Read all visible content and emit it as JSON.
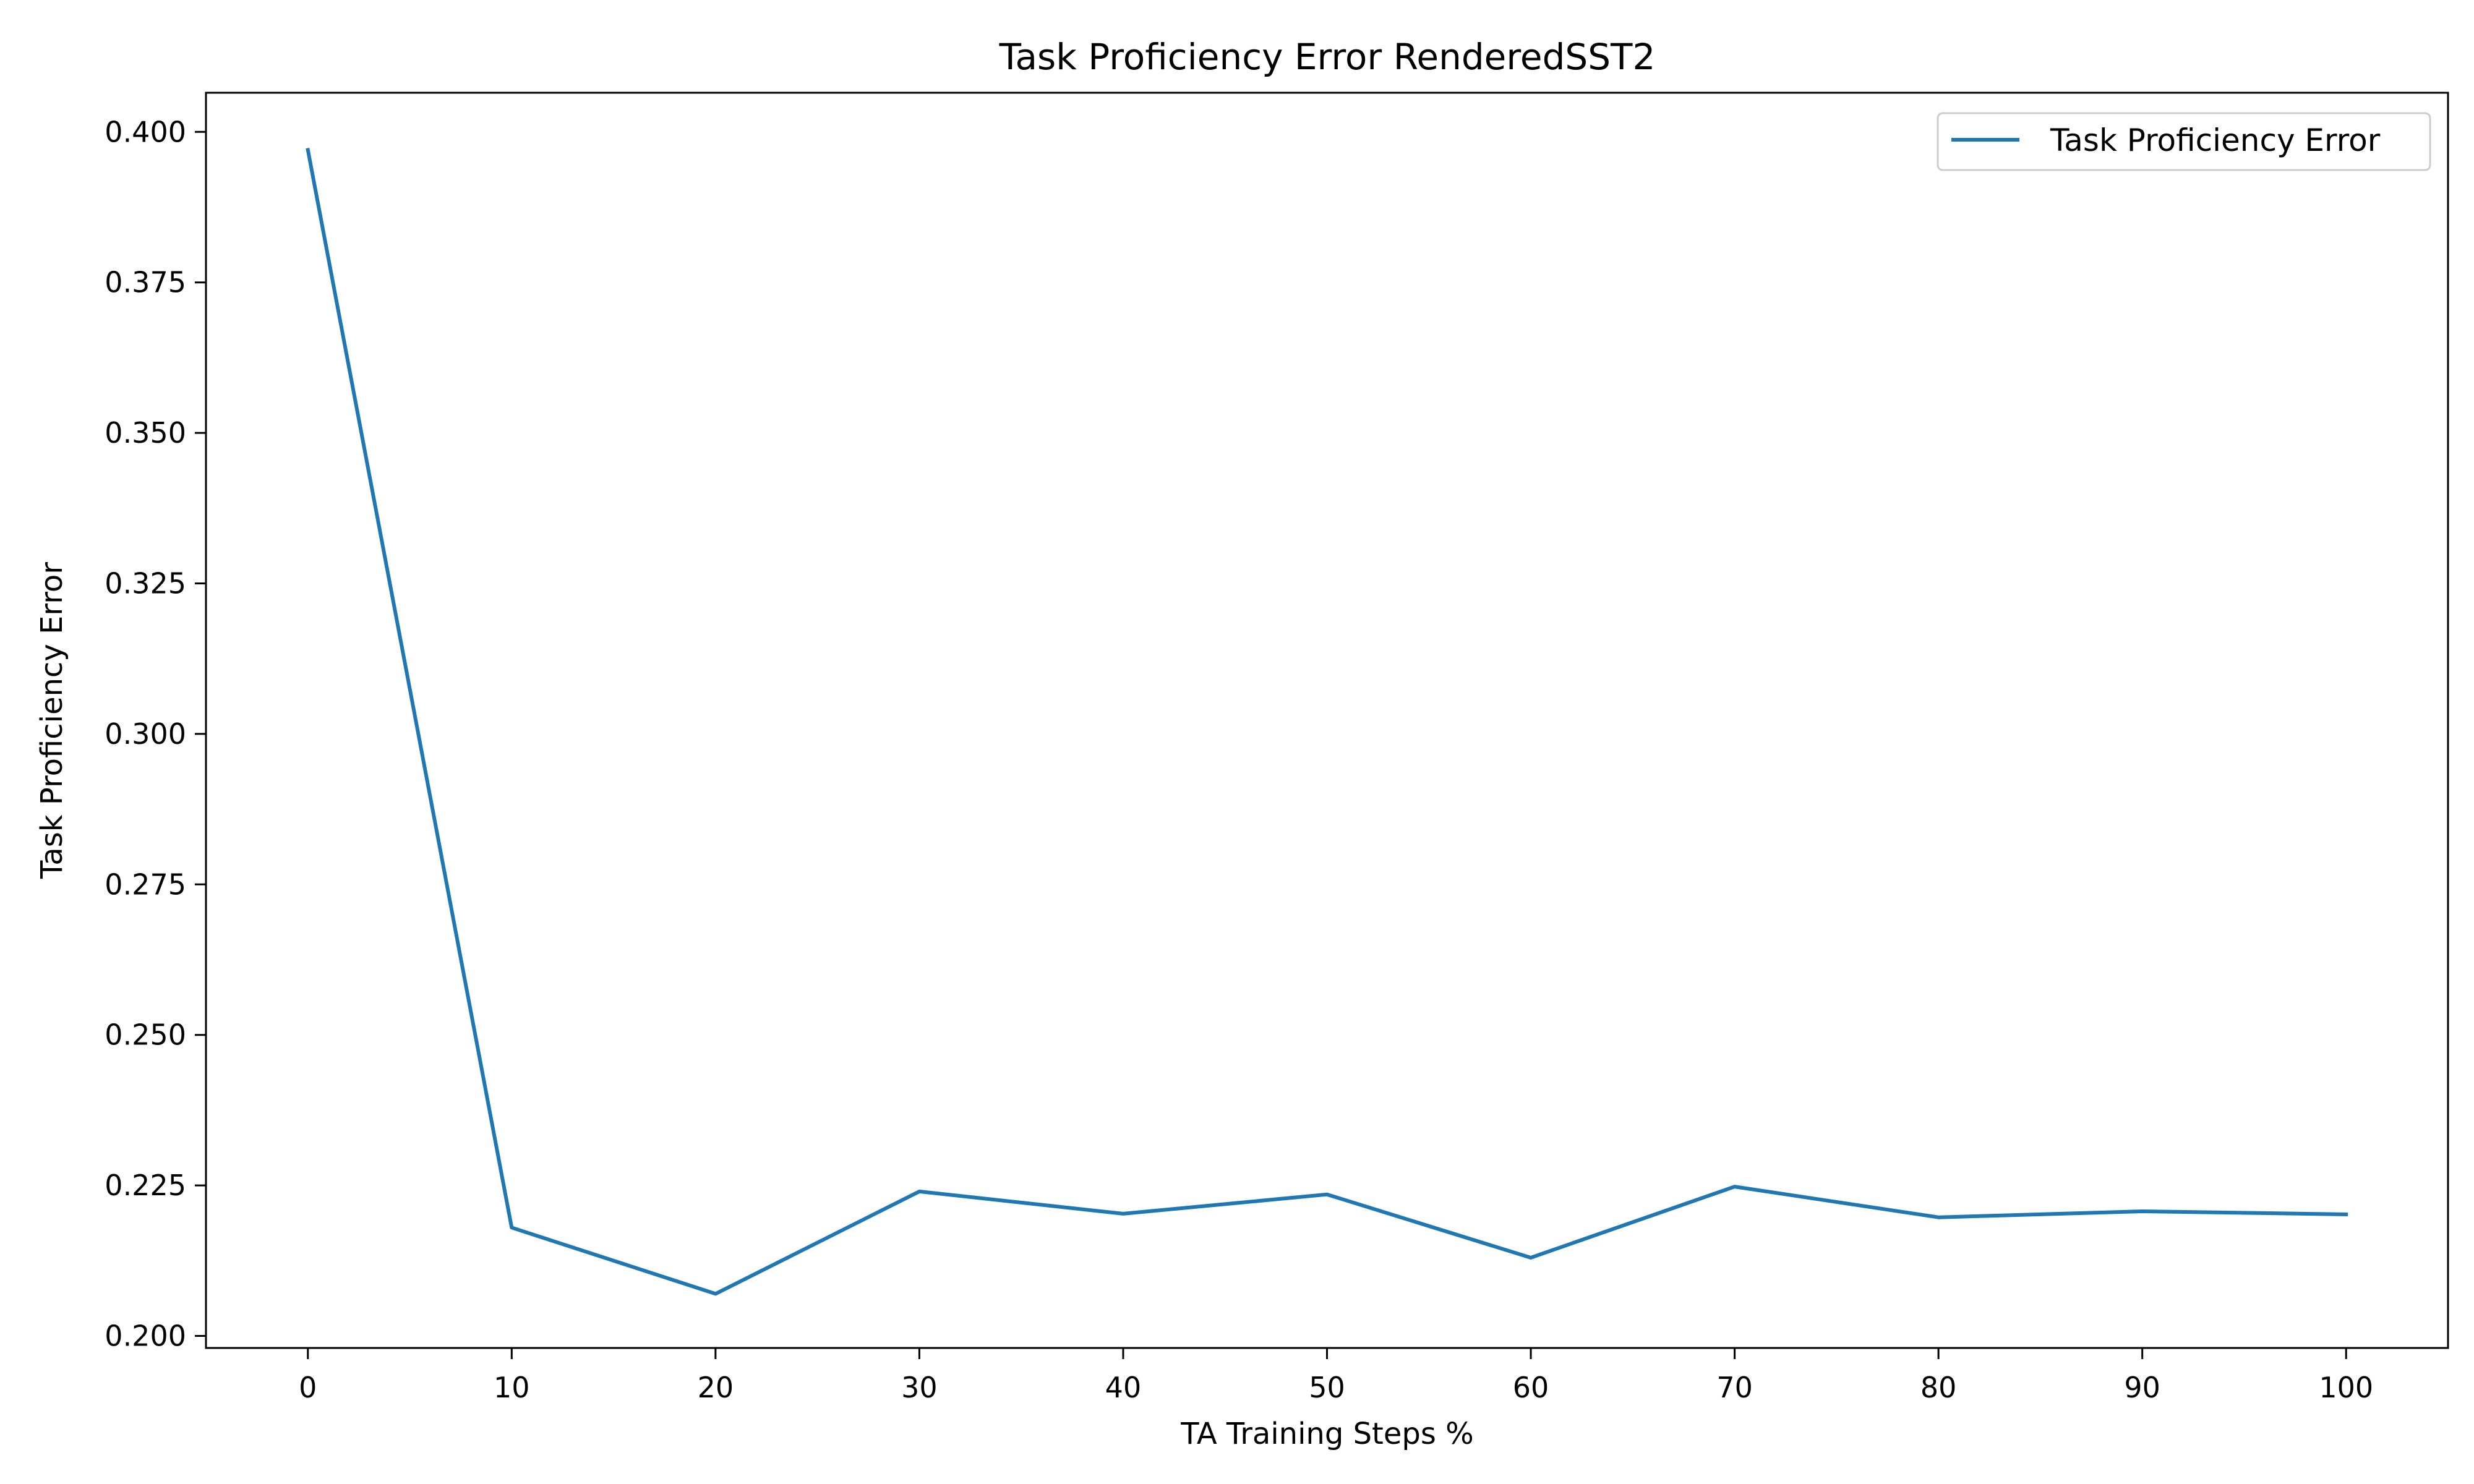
{
  "chart_data": {
    "type": "line",
    "title": "Task Proficiency Error RenderedSST2",
    "xlabel": "TA Training Steps %",
    "ylabel": "Task Proficiency Error",
    "x": [
      0,
      10,
      20,
      30,
      40,
      50,
      60,
      70,
      80,
      90,
      100
    ],
    "series": [
      {
        "name": "Task Proficiency Error",
        "color": "#1f77b4",
        "values": [
          0.397,
          0.218,
          0.207,
          0.224,
          0.2203,
          0.2235,
          0.213,
          0.2248,
          0.2197,
          0.2207,
          0.2202
        ]
      }
    ],
    "xticks": [
      "0",
      "10",
      "20",
      "30",
      "40",
      "50",
      "60",
      "70",
      "80",
      "90",
      "100"
    ],
    "yticks": [
      "0.200",
      "0.225",
      "0.250",
      "0.275",
      "0.300",
      "0.325",
      "0.350",
      "0.375",
      "0.400"
    ],
    "xlim": [
      -5,
      105
    ],
    "ylim": [
      0.198,
      0.4065
    ],
    "grid": false,
    "legend_position": "top-right"
  }
}
